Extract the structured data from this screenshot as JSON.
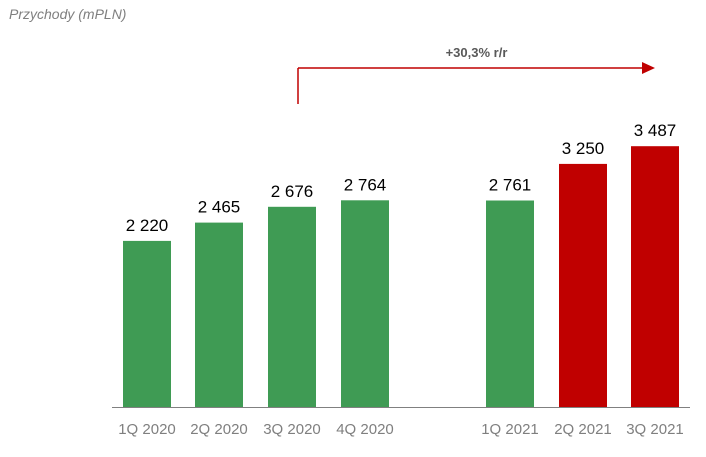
{
  "chart_data": {
    "type": "bar",
    "title": "Przychody (mPLN)",
    "xlabel": "",
    "ylabel": "",
    "ylim": [
      0,
      3800
    ],
    "grid": false,
    "categories": [
      "1Q 2020",
      "2Q 2020",
      "3Q 2020",
      "4Q 2020",
      "1Q 2021",
      "2Q 2021",
      "3Q 2021"
    ],
    "values": [
      2220,
      2465,
      2676,
      2764,
      2761,
      3250,
      3487
    ],
    "value_labels": [
      "2 220",
      "2 465",
      "2 676",
      "2 764",
      "2 761",
      "3 250",
      "3 487"
    ],
    "bar_colors": [
      "#3f9b54",
      "#3f9b54",
      "#3f9b54",
      "#3f9b54",
      "#3f9b54",
      "#c00000",
      "#c00000"
    ],
    "annotation": {
      "text": "+30,3% r/r",
      "from_category": "3Q 2020",
      "to_category": "3Q 2021",
      "color": "#c00000"
    }
  },
  "colors": {
    "green": "#3f9b54",
    "red": "#c00000",
    "axis": "#808080",
    "tick_label": "#7f7f7f",
    "value_label": "#000000",
    "title": "#7f7f7f"
  }
}
